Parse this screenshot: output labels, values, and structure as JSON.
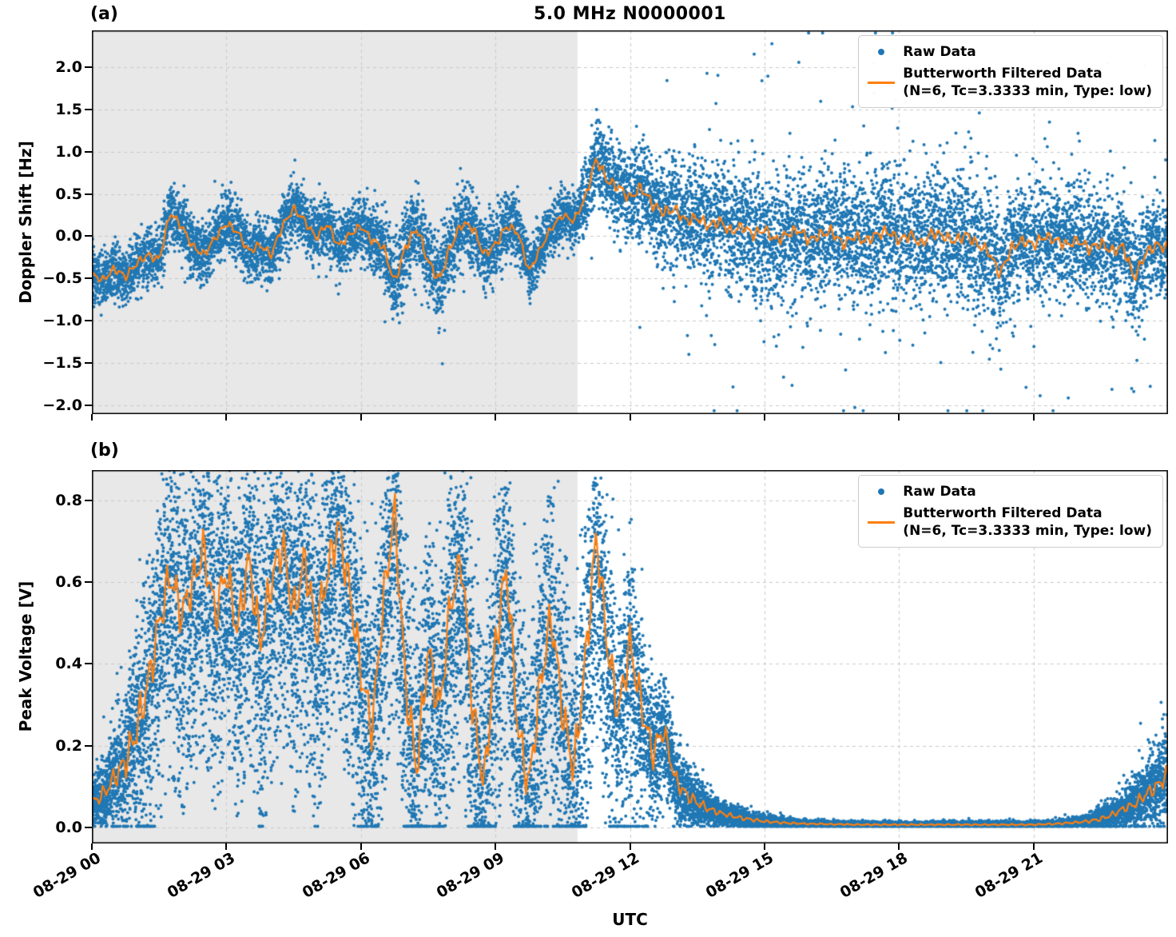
{
  "figure": {
    "title": "5.0 MHz N0000001",
    "xlabel": "UTC",
    "legend": {
      "raw_label": "Raw Data",
      "filtered_label": "Butterworth Filtered Data",
      "filtered_params": "(N=6, Tc=3.3333 min, Type: low)"
    },
    "colors": {
      "raw": "#1f77b4",
      "filtered": "#ff7f0e",
      "shade": "#e8e8e8",
      "grid": "#c9c9c9",
      "axis": "#000000",
      "background": "#ffffff"
    }
  },
  "panels": [
    {
      "label": "(a)",
      "ylabel": "Doppler Shift [Hz]"
    },
    {
      "label": "(b)",
      "ylabel": "Peak Voltage [V]"
    }
  ],
  "chart_data": [
    {
      "type": "scatter",
      "panel": "(a)",
      "title": "5.0 MHz N0000001",
      "xlabel": "UTC",
      "ylabel": "Doppler Shift [Hz]",
      "xlim_hours": [
        0,
        24
      ],
      "ylim": [
        -2.1,
        2.43
      ],
      "x_tick_hours": [
        0,
        3,
        6,
        9,
        12,
        15,
        18,
        21
      ],
      "x_tick_labels": [
        "08-29 00",
        "08-29 03",
        "08-29 06",
        "08-29 09",
        "08-29 12",
        "08-29 15",
        "08-29 18",
        "08-29 21"
      ],
      "y_ticks": [
        -2.0,
        -1.5,
        -1.0,
        -0.5,
        0.0,
        0.5,
        1.0,
        1.5,
        2.0
      ],
      "y_tick_labels": [
        "−2.0",
        "−1.5",
        "−1.0",
        "−0.5",
        "0.0",
        "0.5",
        "1.0",
        "1.5",
        "2.0"
      ],
      "grid": "dashed",
      "legend_position": "upper right",
      "shaded_region_hours": [
        0,
        10.83
      ],
      "series": [
        {
          "name": "Raw Data",
          "type": "scatter",
          "color": "#1f77b4",
          "synthesis": {
            "seed": 42,
            "dt_hours": 0.002,
            "spread_x": [
              0,
              3,
              6,
              6.5,
              7,
              8,
              9,
              10,
              10.8,
              11.2,
              11.6,
              12,
              13,
              14,
              15,
              16,
              17,
              18,
              19,
              20,
              21,
              22,
              23,
              24
            ],
            "spread_y": [
              0.18,
              0.18,
              0.18,
              0.2,
              0.25,
              0.25,
              0.2,
              0.16,
              0.15,
              0.22,
              0.28,
              0.28,
              0.3,
              0.32,
              0.35,
              0.35,
              0.38,
              0.38,
              0.38,
              0.36,
              0.35,
              0.33,
              0.32,
              0.3
            ],
            "tails": [
              {
                "from": 12.8,
                "to": 24.0,
                "rate": 0.04,
                "scale": 3.2
              },
              {
                "from": 6.3,
                "to": 8.6,
                "rate": 0.012,
                "scale": 2.4,
                "bias": -1
              },
              {
                "from": 0.0,
                "to": 1.0,
                "rate": 0.03,
                "scale": 2.0,
                "bias": -1
              },
              {
                "from": 10.9,
                "to": 12.6,
                "rate": 0.012,
                "scale": 2.0
              }
            ],
            "clip": [
              -2.06,
              2.4
            ]
          }
        },
        {
          "name": "Butterworth Filtered Data (N=6, Tc=3.3333 min, Type: low)",
          "type": "line",
          "color": "#ff7f0e",
          "x_start": 0,
          "x_step_hours": 0.25,
          "wiggle_amp": 0.05,
          "wiggle_ref_spread": 0.25,
          "y": [
            -0.45,
            -0.52,
            -0.38,
            -0.48,
            -0.32,
            -0.22,
            -0.28,
            0.28,
            0.12,
            -0.12,
            -0.22,
            -0.02,
            0.15,
            0.05,
            -0.18,
            -0.1,
            -0.22,
            0.12,
            0.33,
            0.18,
            -0.02,
            0.15,
            -0.12,
            0.02,
            0.12,
            -0.05,
            -0.12,
            -0.55,
            -0.12,
            0.1,
            -0.3,
            -0.52,
            -0.12,
            0.15,
            0.1,
            -0.22,
            -0.1,
            0.12,
            0.05,
            -0.42,
            -0.15,
            0.1,
            0.25,
            0.18,
            0.45,
            0.92,
            0.65,
            0.58,
            0.45,
            0.58,
            0.38,
            0.28,
            0.32,
            0.18,
            0.22,
            0.12,
            0.18,
            0.05,
            0.12,
            0.02,
            0.08,
            -0.05,
            0.02,
            0.08,
            -0.05,
            0.02,
            0.06,
            -0.1,
            0.0,
            -0.06,
            0.02,
            0.06,
            -0.05,
            0.02,
            -0.1,
            0.05,
            0.0,
            -0.06,
            0.02,
            -0.1,
            -0.18,
            -0.45,
            -0.15,
            -0.05,
            -0.1,
            0.0,
            -0.05,
            -0.1,
            -0.05,
            -0.15,
            -0.08,
            -0.18,
            -0.12,
            -0.5,
            -0.2,
            -0.1,
            -0.15
          ]
        }
      ]
    },
    {
      "type": "scatter",
      "panel": "(b)",
      "xlabel": "UTC",
      "ylabel": "Peak Voltage [V]",
      "xlim_hours": [
        0,
        24
      ],
      "ylim": [
        -0.04,
        0.875
      ],
      "x_tick_hours": [
        0,
        3,
        6,
        9,
        12,
        15,
        18,
        21
      ],
      "x_tick_labels": [
        "08-29 00",
        "08-29 03",
        "08-29 06",
        "08-29 09",
        "08-29 12",
        "08-29 15",
        "08-29 18",
        "08-29 21"
      ],
      "y_ticks": [
        0.0,
        0.2,
        0.4,
        0.6,
        0.8
      ],
      "y_tick_labels": [
        "0.0",
        "0.2",
        "0.4",
        "0.6",
        "0.8"
      ],
      "grid": "dashed",
      "legend_position": "upper right",
      "shaded_region_hours": [
        0,
        10.83
      ],
      "series": [
        {
          "name": "Raw Data",
          "type": "scatter",
          "color": "#1f77b4",
          "synthesis": {
            "seed": 1337,
            "dt_hours": 0.0012,
            "spread_x": [
              0,
              0.5,
              1,
              1.5,
              2,
              6,
              11,
              11.5,
              12,
              12.5,
              13,
              13.5,
              14,
              15,
              16,
              21,
              22,
              23,
              23.5,
              24
            ],
            "spread_y": [
              0.03,
              0.06,
              0.12,
              0.15,
              0.16,
              0.17,
              0.17,
              0.15,
              0.12,
              0.09,
              0.05,
              0.03,
              0.015,
              0.008,
              0.004,
              0.004,
              0.006,
              0.02,
              0.035,
              0.05
            ],
            "tails": [
              {
                "from": 1.0,
                "to": 12.4,
                "rate": 0.22,
                "mode": "drop",
                "drop_max": 0.5
              },
              {
                "from": 22.8,
                "to": 24.0,
                "rate": 0.12,
                "scale": 2.0
              }
            ],
            "clip": [
              0.002,
              0.88
            ]
          }
        },
        {
          "name": "Butterworth Filtered Data (N=6, Tc=3.3333 min, Type: low)",
          "type": "line",
          "color": "#ff7f0e",
          "x_start": 0,
          "x_step_hours": 0.25,
          "wiggle_amp": 0.04,
          "wiggle_ref_spread": 0.12,
          "y": [
            0.06,
            0.08,
            0.12,
            0.16,
            0.24,
            0.35,
            0.5,
            0.62,
            0.52,
            0.6,
            0.68,
            0.52,
            0.63,
            0.48,
            0.66,
            0.45,
            0.6,
            0.7,
            0.52,
            0.66,
            0.48,
            0.62,
            0.74,
            0.58,
            0.38,
            0.24,
            0.55,
            0.78,
            0.34,
            0.14,
            0.44,
            0.28,
            0.55,
            0.66,
            0.28,
            0.1,
            0.45,
            0.64,
            0.24,
            0.1,
            0.35,
            0.52,
            0.28,
            0.14,
            0.4,
            0.72,
            0.44,
            0.28,
            0.45,
            0.3,
            0.18,
            0.24,
            0.12,
            0.08,
            0.06,
            0.045,
            0.035,
            0.028,
            0.022,
            0.018,
            0.014,
            0.012,
            0.01,
            0.009,
            0.008,
            0.008,
            0.007,
            0.007,
            0.006,
            0.006,
            0.006,
            0.006,
            0.006,
            0.006,
            0.006,
            0.006,
            0.006,
            0.006,
            0.006,
            0.006,
            0.006,
            0.006,
            0.006,
            0.006,
            0.006,
            0.007,
            0.008,
            0.01,
            0.012,
            0.015,
            0.02,
            0.03,
            0.045,
            0.055,
            0.08,
            0.1,
            0.13
          ]
        }
      ]
    }
  ]
}
